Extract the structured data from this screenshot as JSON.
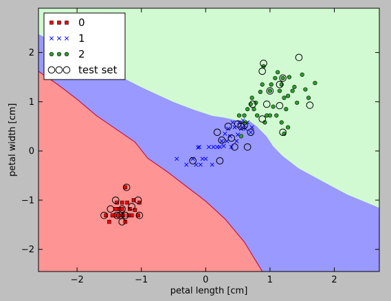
{
  "chart_data": {
    "type": "scatter",
    "title": "",
    "xlabel": "petal length [cm]",
    "ylabel": "petal width [cm]",
    "xlim": [
      -2.6,
      2.7
    ],
    "ylim": [
      -2.45,
      2.9
    ],
    "xticks": [
      -2,
      -1,
      0,
      1,
      2
    ],
    "yticks": [
      -2,
      -1,
      0,
      1,
      2
    ],
    "grid": false,
    "legend_placement": "top-left",
    "decision_regions": [
      {
        "class": "0",
        "color": "#ff9494",
        "polygon": [
          [
            -2.6,
            1.62
          ],
          [
            -2.3,
            1.35
          ],
          [
            -2.0,
            1.05
          ],
          [
            -1.7,
            0.72
          ],
          [
            -1.4,
            0.45
          ],
          [
            -1.1,
            0.18
          ],
          [
            -0.9,
            -0.15
          ],
          [
            -0.6,
            -0.42
          ],
          [
            -0.3,
            -0.72
          ],
          [
            0.0,
            -1.02
          ],
          [
            0.3,
            -1.38
          ],
          [
            0.6,
            -1.85
          ],
          [
            0.88,
            -2.45
          ],
          [
            -2.6,
            -2.45
          ]
        ]
      },
      {
        "class": "1",
        "color": "#9999ff",
        "polygon": [
          [
            -2.6,
            2.38
          ],
          [
            -2.4,
            2.25
          ],
          [
            -2.0,
            2.0
          ],
          [
            -1.6,
            1.72
          ],
          [
            -1.3,
            1.5
          ],
          [
            -1.0,
            1.3
          ],
          [
            -0.8,
            1.18
          ],
          [
            -0.5,
            1.0
          ],
          [
            -0.2,
            0.85
          ],
          [
            0.1,
            0.72
          ],
          [
            0.3,
            0.68
          ],
          [
            0.5,
            0.62
          ],
          [
            0.7,
            0.6
          ],
          [
            0.8,
            0.5
          ],
          [
            0.95,
            0.3
          ],
          [
            1.05,
            0.1
          ],
          [
            1.2,
            -0.1
          ],
          [
            1.45,
            -0.35
          ],
          [
            1.8,
            -0.6
          ],
          [
            2.2,
            -0.88
          ],
          [
            2.7,
            -1.15
          ],
          [
            2.7,
            -2.45
          ],
          [
            0.88,
            -2.45
          ],
          [
            0.6,
            -1.85
          ],
          [
            0.3,
            -1.38
          ],
          [
            0.0,
            -1.02
          ],
          [
            -0.3,
            -0.72
          ],
          [
            -0.6,
            -0.42
          ],
          [
            -0.9,
            -0.15
          ],
          [
            -1.1,
            0.18
          ],
          [
            -1.4,
            0.45
          ],
          [
            -1.7,
            0.72
          ],
          [
            -2.0,
            1.05
          ],
          [
            -2.3,
            1.35
          ],
          [
            -2.6,
            1.62
          ]
        ]
      },
      {
        "class": "2",
        "color": "#d2fad2",
        "polygon": [
          [
            -2.6,
            2.9
          ],
          [
            2.7,
            2.9
          ],
          [
            2.7,
            -1.15
          ],
          [
            2.2,
            -0.88
          ],
          [
            1.8,
            -0.6
          ],
          [
            1.45,
            -0.35
          ],
          [
            1.2,
            -0.1
          ],
          [
            1.05,
            0.1
          ],
          [
            0.95,
            0.3
          ],
          [
            0.8,
            0.5
          ],
          [
            0.7,
            0.6
          ],
          [
            0.5,
            0.62
          ],
          [
            0.3,
            0.68
          ],
          [
            0.1,
            0.72
          ],
          [
            -0.2,
            0.85
          ],
          [
            -0.5,
            1.0
          ],
          [
            -0.8,
            1.18
          ],
          [
            -1.0,
            1.3
          ],
          [
            -1.3,
            1.5
          ],
          [
            -1.6,
            1.72
          ],
          [
            -2.0,
            2.0
          ],
          [
            -2.4,
            2.25
          ],
          [
            -2.6,
            2.38
          ]
        ]
      }
    ],
    "series": [
      {
        "name": "0",
        "marker": "square",
        "color": "#ff0000",
        "points": [
          [
            -1.55,
            -1.31
          ],
          [
            -1.5,
            -1.44
          ],
          [
            -1.45,
            -1.31
          ],
          [
            -1.4,
            -1.31
          ],
          [
            -1.38,
            -1.05
          ],
          [
            -1.35,
            -1.18
          ],
          [
            -1.33,
            -1.31
          ],
          [
            -1.3,
            -1.18
          ],
          [
            -1.28,
            -1.31
          ],
          [
            -1.25,
            -1.44
          ],
          [
            -1.22,
            -1.05
          ],
          [
            -1.2,
            -1.31
          ],
          [
            -1.18,
            -1.18
          ],
          [
            -1.15,
            -1.31
          ],
          [
            -1.12,
            -1.0
          ],
          [
            -1.1,
            -1.2
          ],
          [
            -1.05,
            -1.31
          ],
          [
            -1.03,
            -1.05
          ],
          [
            -1.3,
            -1.05
          ],
          [
            -1.4,
            -1.18
          ],
          [
            -1.25,
            -0.74
          ]
        ]
      },
      {
        "name": "1",
        "marker": "x",
        "color": "#0000ff",
        "points": [
          [
            -0.45,
            -0.16
          ],
          [
            -0.3,
            -0.28
          ],
          [
            -0.2,
            -0.16
          ],
          [
            -0.15,
            -0.28
          ],
          [
            -0.08,
            -0.28
          ],
          [
            -0.05,
            -0.16
          ],
          [
            0.0,
            -0.16
          ],
          [
            0.05,
            0.08
          ],
          [
            -0.1,
            0.08
          ],
          [
            0.1,
            -0.28
          ],
          [
            0.12,
            0.08
          ],
          [
            0.18,
            0.08
          ],
          [
            0.22,
            0.08
          ],
          [
            0.25,
            0.2
          ],
          [
            0.28,
            0.1
          ],
          [
            0.3,
            0.35
          ],
          [
            0.33,
            0.2
          ],
          [
            0.35,
            0.45
          ],
          [
            0.38,
            0.3
          ],
          [
            0.4,
            0.08
          ],
          [
            0.42,
            0.58
          ],
          [
            0.45,
            0.48
          ],
          [
            0.48,
            0.2
          ],
          [
            0.5,
            0.33
          ],
          [
            0.52,
            0.58
          ],
          [
            0.55,
            0.45
          ],
          [
            0.58,
            0.62
          ],
          [
            0.6,
            0.52
          ],
          [
            0.62,
            0.45
          ],
          [
            0.65,
            0.58
          ],
          [
            0.7,
            0.38
          ],
          [
            0.72,
            0.48
          ],
          [
            -0.12,
            0.07
          ]
        ]
      },
      {
        "name": "2",
        "marker": "circle",
        "color": "#2ca02c",
        "points": [
          [
            0.52,
            0.72
          ],
          [
            0.6,
            0.72
          ],
          [
            0.65,
            0.85
          ],
          [
            0.7,
            0.95
          ],
          [
            0.72,
            1.08
          ],
          [
            0.75,
            0.85
          ],
          [
            0.78,
            0.98
          ],
          [
            0.8,
            0.72
          ],
          [
            0.85,
            1.2
          ],
          [
            0.88,
            1.35
          ],
          [
            0.9,
            1.72
          ],
          [
            0.92,
            0.58
          ],
          [
            0.95,
            0.72
          ],
          [
            1.0,
            1.22
          ],
          [
            1.02,
            1.35
          ],
          [
            1.05,
            0.9
          ],
          [
            1.08,
            1.48
          ],
          [
            1.1,
            0.72
          ],
          [
            1.12,
            1.6
          ],
          [
            1.15,
            1.22
          ],
          [
            1.18,
            1.35
          ],
          [
            1.2,
            1.48
          ],
          [
            1.22,
            1.08
          ],
          [
            1.25,
            0.85
          ],
          [
            1.28,
            1.12
          ],
          [
            1.3,
            1.5
          ],
          [
            1.35,
            1.22
          ],
          [
            1.38,
            1.3
          ],
          [
            1.42,
            0.98
          ],
          [
            1.5,
            1.55
          ],
          [
            1.55,
            1.25
          ],
          [
            1.6,
            1.08
          ],
          [
            1.7,
            1.38
          ],
          [
            0.55,
            0.3
          ],
          [
            0.62,
            0.58
          ],
          [
            1.18,
            0.58
          ],
          [
            1.22,
            0.35
          ],
          [
            1.0,
            0.72
          ],
          [
            1.28,
            0.48
          ]
        ]
      },
      {
        "name": "test set",
        "marker": "open-circle",
        "color": "#000000",
        "points": [
          [
            -1.58,
            -1.31
          ],
          [
            -1.48,
            -1.18
          ],
          [
            -1.4,
            -1.0
          ],
          [
            -1.38,
            -1.31
          ],
          [
            -1.33,
            -1.31
          ],
          [
            -1.3,
            -1.18
          ],
          [
            -1.3,
            -1.44
          ],
          [
            -1.25,
            -1.31
          ],
          [
            -1.23,
            -0.74
          ],
          [
            -1.15,
            -1.13
          ],
          [
            -1.05,
            -1.0
          ],
          [
            -1.03,
            -1.31
          ],
          [
            -0.2,
            -0.2
          ],
          [
            0.18,
            0.38
          ],
          [
            0.22,
            -0.2
          ],
          [
            0.25,
            0.22
          ],
          [
            0.35,
            0.5
          ],
          [
            0.4,
            0.26
          ],
          [
            0.45,
            0.08
          ],
          [
            0.5,
            0.55
          ],
          [
            0.55,
            0.5
          ],
          [
            0.6,
            0.52
          ],
          [
            0.65,
            0.08
          ],
          [
            0.7,
            0.38
          ],
          [
            0.73,
            0.95
          ],
          [
            0.88,
            0.65
          ],
          [
            0.88,
            1.62
          ],
          [
            0.9,
            1.78
          ],
          [
            0.95,
            0.95
          ],
          [
            1.0,
            1.22
          ],
          [
            1.15,
            1.35
          ],
          [
            1.15,
            0.92
          ],
          [
            1.2,
            1.48
          ],
          [
            1.2,
            0.38
          ],
          [
            1.45,
            1.9
          ],
          [
            1.62,
            0.93
          ]
        ]
      }
    ]
  }
}
